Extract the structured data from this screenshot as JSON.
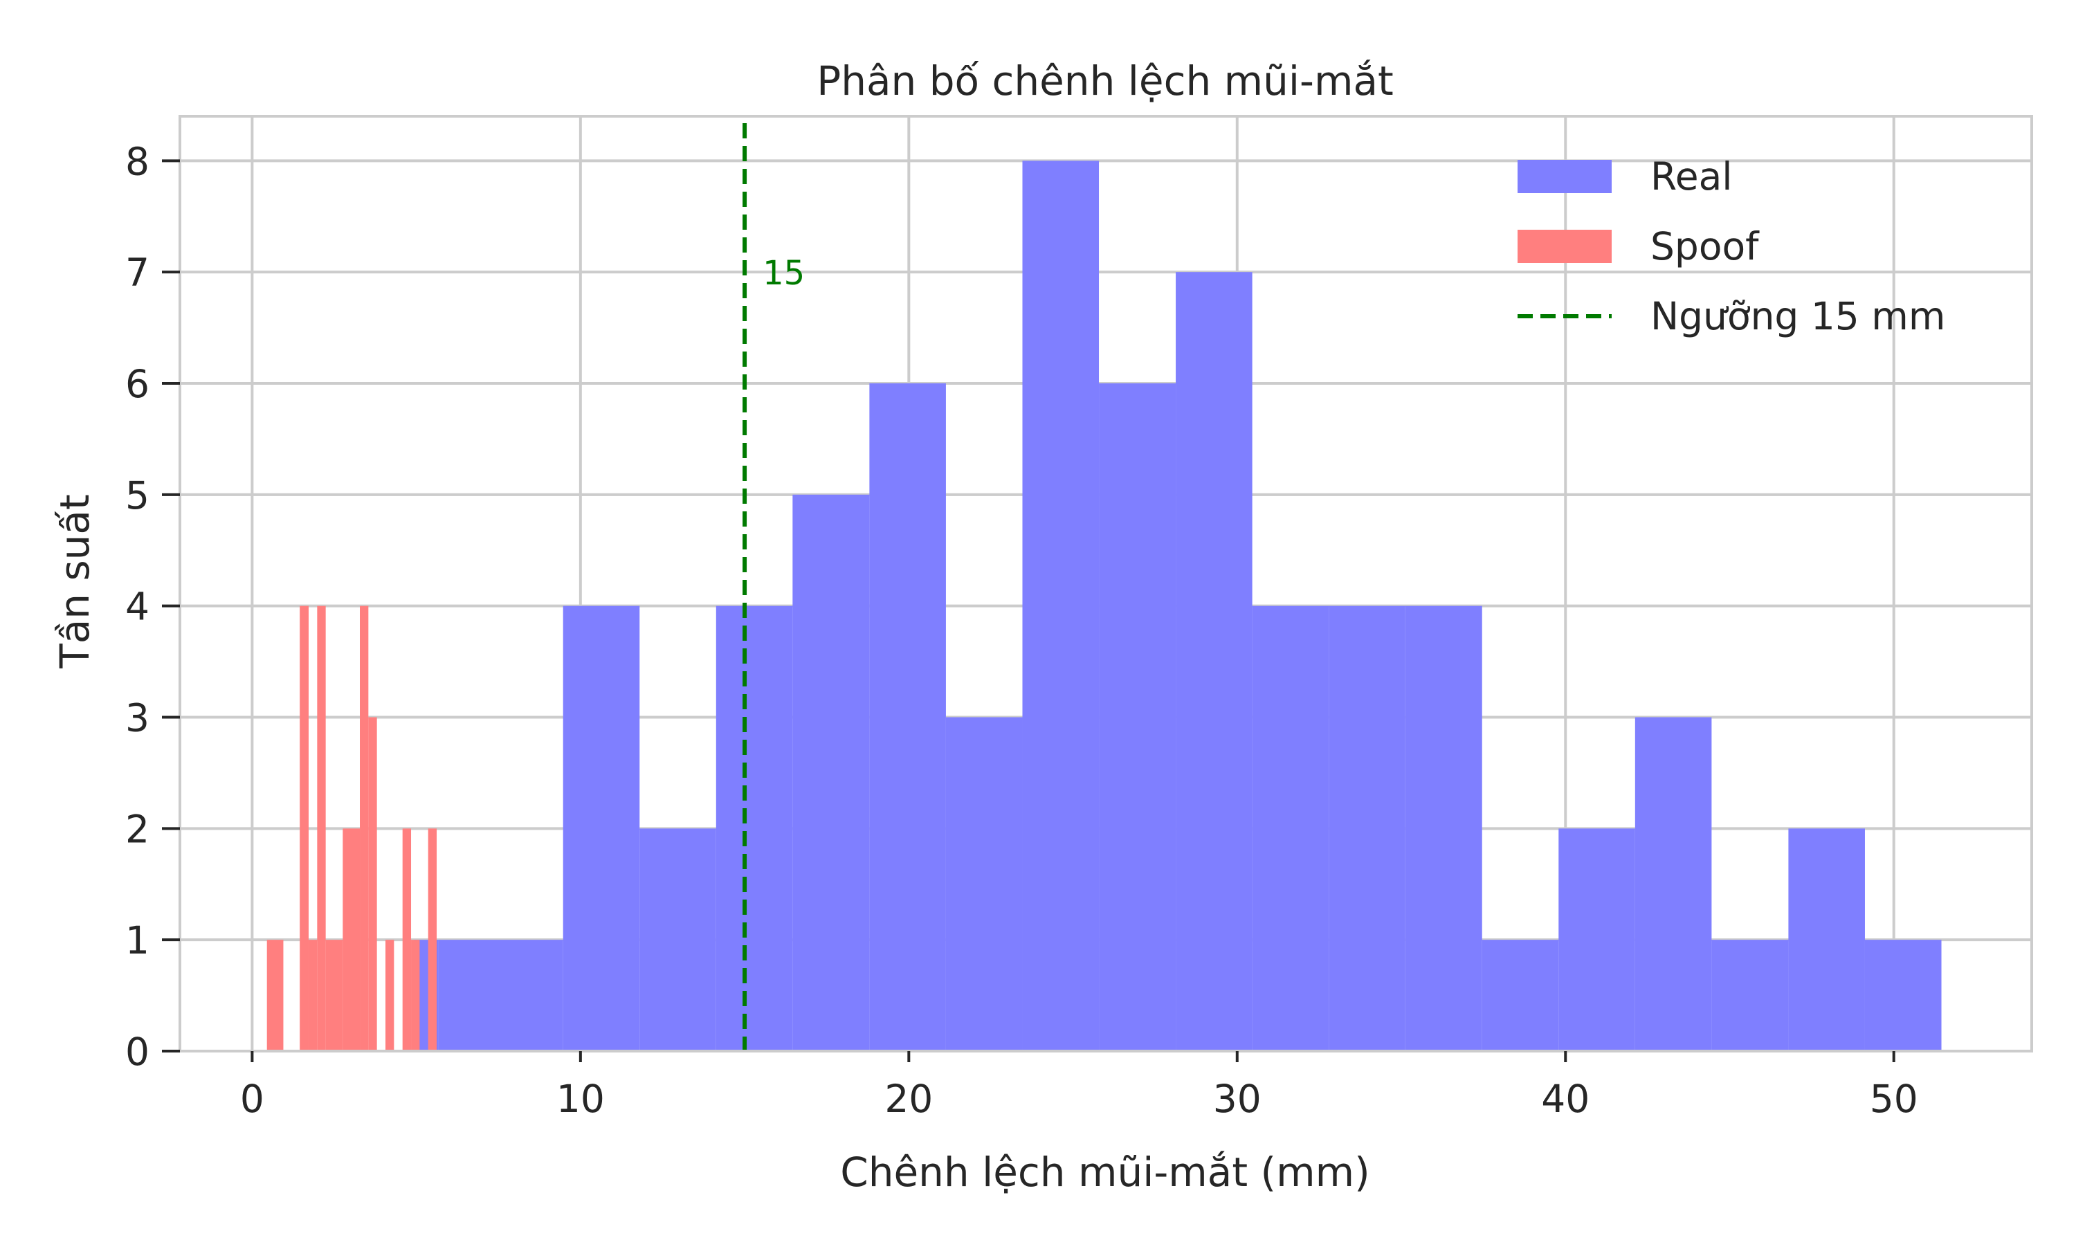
{
  "chart_data": {
    "type": "bar",
    "title": "Phân bố chênh lệch mũi-mắt",
    "xlabel": "Chênh lệch mũi-mắt (mm)",
    "ylabel": "Tần suất",
    "xlim": [
      -2.2,
      54.2
    ],
    "ylim": [
      0,
      8.4
    ],
    "xticks": [
      0,
      10,
      20,
      30,
      40,
      50
    ],
    "yticks": [
      0,
      1,
      2,
      3,
      4,
      5,
      6,
      7,
      8
    ],
    "grid": true,
    "legend": {
      "placement": "top-right",
      "entries": [
        {
          "label": "Real",
          "kind": "patch",
          "color": "#7f7fff"
        },
        {
          "label": "Spoof",
          "kind": "patch",
          "color": "#ff7f7f"
        },
        {
          "label": "Ngưỡng 15 mm",
          "kind": "dashed-line",
          "color": "#007a00"
        }
      ]
    },
    "series": [
      {
        "name": "Real",
        "color": "#7f7fff",
        "bins": [
          {
            "x0": 4.92,
            "x1": 5.67,
            "count": 1
          },
          {
            "x0": 5.67,
            "x1": 9.47,
            "count": 1
          },
          {
            "x0": 9.47,
            "x1": 11.8,
            "count": 4
          },
          {
            "x0": 11.8,
            "x1": 14.13,
            "count": 2
          },
          {
            "x0": 14.13,
            "x1": 16.46,
            "count": 4
          },
          {
            "x0": 16.46,
            "x1": 18.8,
            "count": 5
          },
          {
            "x0": 18.8,
            "x1": 21.13,
            "count": 6
          },
          {
            "x0": 21.13,
            "x1": 23.46,
            "count": 3
          },
          {
            "x0": 23.46,
            "x1": 25.79,
            "count": 8
          },
          {
            "x0": 25.79,
            "x1": 28.13,
            "count": 6
          },
          {
            "x0": 28.13,
            "x1": 30.46,
            "count": 7
          },
          {
            "x0": 30.46,
            "x1": 32.79,
            "count": 4
          },
          {
            "x0": 32.79,
            "x1": 35.12,
            "count": 4
          },
          {
            "x0": 35.12,
            "x1": 37.46,
            "count": 4
          },
          {
            "x0": 37.46,
            "x1": 39.79,
            "count": 1
          },
          {
            "x0": 39.79,
            "x1": 42.12,
            "count": 2
          },
          {
            "x0": 42.12,
            "x1": 44.45,
            "count": 3
          },
          {
            "x0": 44.45,
            "x1": 46.79,
            "count": 1
          },
          {
            "x0": 46.79,
            "x1": 49.12,
            "count": 2
          },
          {
            "x0": 49.12,
            "x1": 51.45,
            "count": 1
          }
        ]
      },
      {
        "name": "Spoof",
        "color": "#ff7f7f",
        "bins": [
          {
            "x0": 0.45,
            "x1": 0.95,
            "count": 1
          },
          {
            "x0": 1.45,
            "x1": 1.72,
            "count": 4
          },
          {
            "x0": 1.72,
            "x1": 1.98,
            "count": 1
          },
          {
            "x0": 1.98,
            "x1": 2.24,
            "count": 4
          },
          {
            "x0": 2.24,
            "x1": 2.76,
            "count": 1
          },
          {
            "x0": 2.76,
            "x1": 3.28,
            "count": 2
          },
          {
            "x0": 3.28,
            "x1": 3.54,
            "count": 4
          },
          {
            "x0": 3.54,
            "x1": 3.8,
            "count": 3
          },
          {
            "x0": 4.06,
            "x1": 4.32,
            "count": 1
          },
          {
            "x0": 4.58,
            "x1": 4.84,
            "count": 2
          },
          {
            "x0": 4.84,
            "x1": 5.1,
            "count": 1
          },
          {
            "x0": 5.36,
            "x1": 5.62,
            "count": 2
          }
        ]
      }
    ],
    "threshold": {
      "label": "Ngưỡng 15 mm",
      "x": 15,
      "annotation": "15",
      "color": "#007a00",
      "style": "dashed"
    }
  }
}
